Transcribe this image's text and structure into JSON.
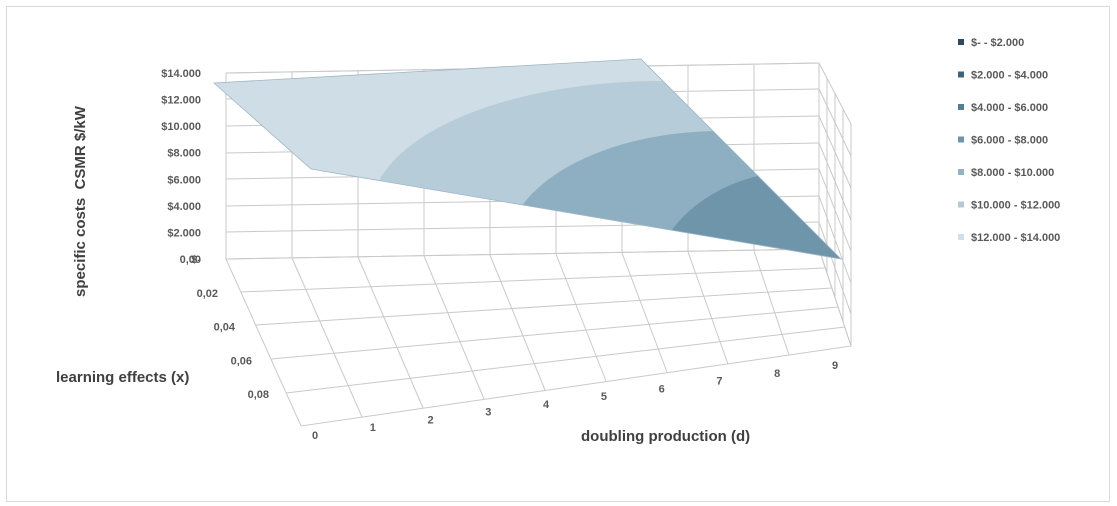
{
  "chart_data": {
    "type": "surface",
    "z_axis": {
      "label": "specific costs  CSMR $/kW",
      "ticks": [
        "$-",
        "$2.000",
        "$4.000",
        "$6.000",
        "$8.000",
        "$10.000",
        "$12.000",
        "$14.000"
      ],
      "values": [
        0,
        2000,
        4000,
        6000,
        8000,
        10000,
        12000,
        14000
      ]
    },
    "x_axis": {
      "label": "doubling production (d)",
      "ticks": [
        "0",
        "1",
        "2",
        "3",
        "4",
        "5",
        "6",
        "7",
        "8",
        "9"
      ]
    },
    "y_axis": {
      "label": "learning effects (x)",
      "ticks": [
        "0,00",
        "0,02",
        "0,04",
        "0,06",
        "0,08"
      ]
    },
    "legend": {
      "placement": "right",
      "entries": [
        {
          "label": "$-   - $2.000",
          "color": "#2e4a60"
        },
        {
          "label": "$2.000 - $4.000",
          "color": "#41637c"
        },
        {
          "label": "$4.000 - $6.000",
          "color": "#577c95"
        },
        {
          "label": "$6.000 - $8.000",
          "color": "#6f95ab"
        },
        {
          "label": "$8.000 - $10.000",
          "color": "#93b2c4"
        },
        {
          "label": "$10.000 - $12.000",
          "color": "#b3c9d6"
        },
        {
          "label": "$12.000 - $14.000",
          "color": "#d0dfe8"
        }
      ]
    },
    "surface_cost_at_zero_learning": 13000,
    "surface_cost_at_max_learning_and_9_doublings": 0,
    "grid": true
  }
}
